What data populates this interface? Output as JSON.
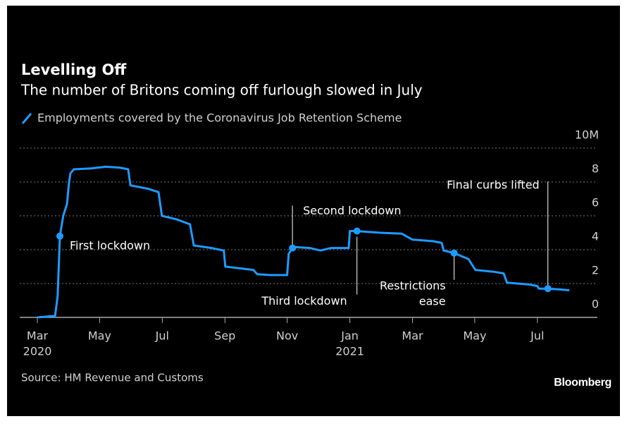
{
  "chart_data": {
    "type": "line",
    "title": "Levelling Off",
    "subtitle": "The number of Britons coming off furlough slowed in July",
    "source": "Source: HM Revenue and Customs",
    "brand": "Bloomberg",
    "xlim": [
      2020.12,
      2021.66
    ],
    "ylim": [
      0,
      10
    ],
    "yticks": [
      0,
      2,
      4,
      6,
      8,
      {
        "value": 10,
        "label": "10M"
      }
    ],
    "xticks": [
      {
        "value": 2020.167,
        "label": "Mar"
      },
      {
        "value": 2020.333,
        "label": "May"
      },
      {
        "value": 2020.5,
        "label": "Jul"
      },
      {
        "value": 2020.667,
        "label": "Sep"
      },
      {
        "value": 2020.833,
        "label": "Nov"
      },
      {
        "value": 2021.0,
        "label": "Jan"
      },
      {
        "value": 2021.167,
        "label": "Mar"
      },
      {
        "value": 2021.333,
        "label": "May"
      },
      {
        "value": 2021.5,
        "label": "Jul"
      }
    ],
    "x_year_labels": [
      {
        "value": 2020.167,
        "label": "2020"
      },
      {
        "value": 2021.0,
        "label": "2021"
      }
    ],
    "grid": true,
    "x": [
      2020.167,
      2020.208,
      2020.214,
      2020.221,
      2020.227,
      2020.236,
      2020.246,
      2020.251,
      2020.255,
      2020.264,
      2020.311,
      2020.349,
      2020.386,
      2020.409,
      2020.415,
      2020.462,
      2020.49,
      2020.499,
      2020.537,
      2020.574,
      2020.584,
      2020.631,
      2020.664,
      2020.668,
      2020.706,
      2020.743,
      2020.753,
      2020.79,
      2020.833,
      2020.837,
      2020.847,
      2020.856,
      2020.893,
      2020.922,
      2020.95,
      2020.997,
      2021.0,
      2021.019,
      2021.081,
      2021.138,
      2021.166,
      2021.222,
      2021.245,
      2021.25,
      2021.278,
      2021.316,
      2021.335,
      2021.382,
      2021.41,
      2021.419,
      2021.476,
      2021.5,
      2021.504,
      2021.528,
      2021.56,
      2021.585
    ],
    "series": [
      {
        "name": "Employments covered by the Coronavirus Job Retention Scheme",
        "color": "#1e9bff",
        "values": [
          0,
          0.08,
          0.05,
          1.25,
          4.8,
          6.0,
          6.7,
          7.9,
          8.5,
          8.75,
          8.8,
          8.9,
          8.85,
          8.75,
          7.8,
          7.6,
          7.4,
          6.0,
          5.8,
          5.5,
          4.25,
          4.1,
          3.95,
          3.0,
          2.9,
          2.8,
          2.55,
          2.5,
          2.5,
          3.75,
          4.1,
          4.15,
          4.1,
          3.95,
          4.1,
          4.1,
          5.1,
          5.1,
          5.0,
          4.95,
          4.6,
          4.5,
          4.4,
          3.95,
          3.8,
          3.45,
          2.8,
          2.7,
          2.6,
          2.05,
          1.95,
          1.85,
          1.7,
          1.7,
          1.65,
          1.6
        ]
      }
    ],
    "annotations": [
      {
        "text": [
          "First lockdown"
        ],
        "x": 2020.227,
        "y": 4.8
      },
      {
        "text": [
          "Second lockdown"
        ],
        "x": 2020.847,
        "y": 4.1
      },
      {
        "text": [
          "Third lockdown"
        ],
        "x": 2021.019,
        "y": 5.1
      },
      {
        "text": [
          "Restrictions",
          "ease"
        ],
        "x": 2021.278,
        "y": 3.8
      },
      {
        "text": [
          "Final curbs lifted"
        ],
        "x": 2021.528,
        "y": 1.7
      }
    ]
  }
}
